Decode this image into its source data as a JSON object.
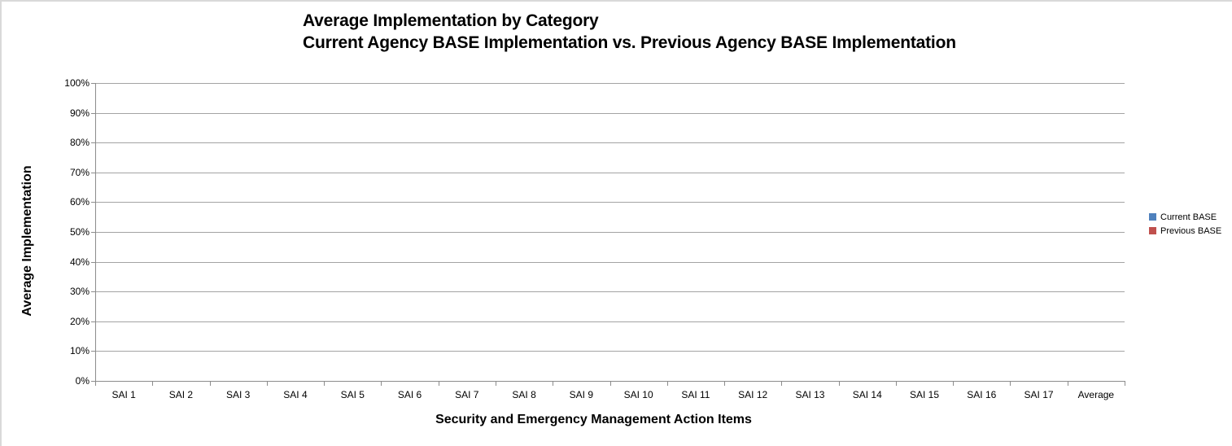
{
  "title": {
    "line1": "Average Implementation by Category",
    "line2": "Current Agency BASE Implementation vs. Previous Agency BASE Implementation"
  },
  "axes": {
    "y_title": "Average Implementation",
    "x_title": "Security and Emergency Management Action Items",
    "y_tick_labels": [
      "100%",
      "90%",
      "80%",
      "70%",
      "60%",
      "50%",
      "40%",
      "30%",
      "20%",
      "10%",
      "0%"
    ],
    "x_categories": [
      "SAI 1",
      "SAI 2",
      "SAI 3",
      "SAI 4",
      "SAI 5",
      "SAI 6",
      "SAI 7",
      "SAI 8",
      "SAI 9",
      "SAI 10",
      "SAI 11",
      "SAI 12",
      "SAI 13",
      "SAI 14",
      "SAI 15",
      "SAI 16",
      "SAI 17",
      "Average"
    ]
  },
  "legend": {
    "items": [
      {
        "label": "Current BASE",
        "color": "#4F81BD"
      },
      {
        "label": "Previous BASE",
        "color": "#C0504D"
      }
    ]
  },
  "colors": {
    "gridline": "#a3a3a3",
    "axis": "#8c8c8c",
    "chart_border": "#d9d9d9",
    "text": "#000000",
    "series_current": "#4F81BD",
    "series_previous": "#C0504D"
  },
  "chart_data": {
    "type": "bar",
    "title": "Average Implementation by Category",
    "subtitle": "Current Agency BASE Implementation vs. Previous Agency BASE Implementation",
    "xlabel": "Security and Emergency Management Action Items",
    "ylabel": "Average Implementation",
    "categories": [
      "SAI 1",
      "SAI 2",
      "SAI 3",
      "SAI 4",
      "SAI 5",
      "SAI 6",
      "SAI 7",
      "SAI 8",
      "SAI 9",
      "SAI 10",
      "SAI 11",
      "SAI 12",
      "SAI 13",
      "SAI 14",
      "SAI 15",
      "SAI 16",
      "SAI 17",
      "Average"
    ],
    "series": [
      {
        "name": "Current BASE",
        "color": "#4F81BD",
        "values": [
          0,
          0,
          0,
          0,
          0,
          0,
          0,
          0,
          0,
          0,
          0,
          0,
          0,
          0,
          0,
          0,
          0,
          0
        ]
      },
      {
        "name": "Previous BASE",
        "color": "#C0504D",
        "values": [
          0,
          0,
          0,
          0,
          0,
          0,
          0,
          0,
          0,
          0,
          0,
          0,
          0,
          0,
          0,
          0,
          0,
          0
        ]
      }
    ],
    "ylim": [
      0,
      1
    ],
    "y_tick_format": "percent",
    "y_tick_step": 0.1,
    "grid": true,
    "legend_position": "right",
    "bars_visible": false
  }
}
